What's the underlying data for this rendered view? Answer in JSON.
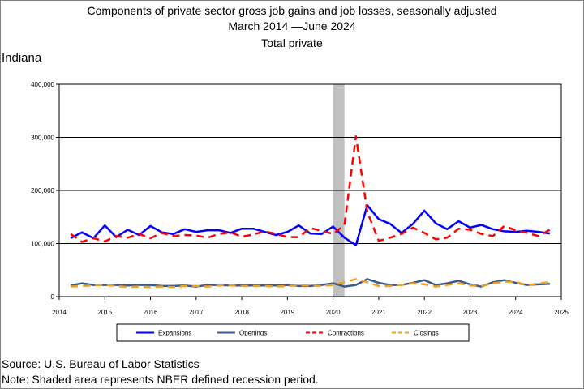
{
  "title": {
    "line1": "Components of private sector gross job gains and job losses, seasonally adjusted",
    "line2": "March 2014 —June 2024",
    "line3": "Total private"
  },
  "region": "Indiana",
  "footer": {
    "source": "Source: U.S. Bureau of Labor Statistics",
    "note": "Note: Shaded area represents NBER defined recession period."
  },
  "chart_data": {
    "type": "line",
    "title": "Components of private sector gross job gains and job losses, seasonally adjusted",
    "x_start": 2014.25,
    "x_step": 0.25,
    "xlim": [
      2014,
      2025
    ],
    "ylim": [
      0,
      400000
    ],
    "x_ticks": [
      "2014",
      "2015",
      "2016",
      "2017",
      "2018",
      "2019",
      "2020",
      "2021",
      "2022",
      "2023",
      "2024",
      "2025"
    ],
    "y_ticks": [
      "0",
      "100,000",
      "200,000",
      "300,000",
      "400,000"
    ],
    "grid": "horizontal",
    "legend_position": "bottom",
    "recession": [
      2020.0,
      2020.25
    ],
    "colors": {
      "expansions": "#0000ff",
      "openings": "#3b5b8c",
      "contractions": "#ff0000",
      "closings": "#f0a020",
      "recession": "#c0c0c0"
    },
    "series": [
      {
        "name": "Expansions",
        "color": "#0000ff",
        "style": "solid",
        "values": [
          110000,
          121000,
          110000,
          134000,
          112000,
          126000,
          116000,
          133000,
          121000,
          118000,
          127000,
          122000,
          125000,
          125000,
          120000,
          128000,
          128000,
          122000,
          116000,
          122000,
          134000,
          119000,
          118000,
          132000,
          111000,
          97000,
          172000,
          146000,
          137000,
          120000,
          137000,
          162000,
          138000,
          127000,
          142000,
          130000,
          135000,
          127000,
          123000,
          122000,
          124000,
          122000,
          119000
        ]
      },
      {
        "name": "Openings",
        "color": "#3b5b8c",
        "style": "solid",
        "values": [
          21000,
          25000,
          22000,
          22000,
          22000,
          21000,
          22000,
          22000,
          20000,
          20000,
          21000,
          19000,
          22000,
          22000,
          21000,
          21000,
          21000,
          21000,
          21000,
          22000,
          20000,
          20000,
          22000,
          25000,
          19000,
          22000,
          33000,
          26000,
          22000,
          22000,
          26000,
          31000,
          22000,
          25000,
          30000,
          23000,
          19000,
          27000,
          31000,
          26000,
          22000,
          23000,
          24000
        ]
      },
      {
        "name": "Contractions",
        "color": "#ff0000",
        "style": "dashed",
        "values": [
          118000,
          103000,
          110000,
          104000,
          114000,
          111000,
          118000,
          110000,
          120000,
          114000,
          116000,
          115000,
          111000,
          118000,
          121000,
          113000,
          117000,
          123000,
          118000,
          112000,
          112000,
          129000,
          124000,
          118000,
          135000,
          302000,
          160000,
          105000,
          111000,
          118000,
          130000,
          120000,
          108000,
          111000,
          128000,
          126000,
          118000,
          114000,
          133000,
          125000,
          120000,
          114000,
          126000
        ]
      },
      {
        "name": "Closings",
        "color": "#f0a020",
        "style": "dashed",
        "values": [
          19000,
          20000,
          21000,
          22000,
          20000,
          18000,
          19000,
          18000,
          19000,
          18000,
          20000,
          20000,
          19000,
          21000,
          21000,
          20000,
          20000,
          20000,
          19000,
          20000,
          21000,
          21000,
          20000,
          22000,
          27000,
          33000,
          27000,
          20000,
          20000,
          22000,
          25000,
          23000,
          19000,
          22000,
          25000,
          21000,
          20000,
          25000,
          28000,
          28000,
          21000,
          25000,
          27000
        ]
      }
    ]
  }
}
